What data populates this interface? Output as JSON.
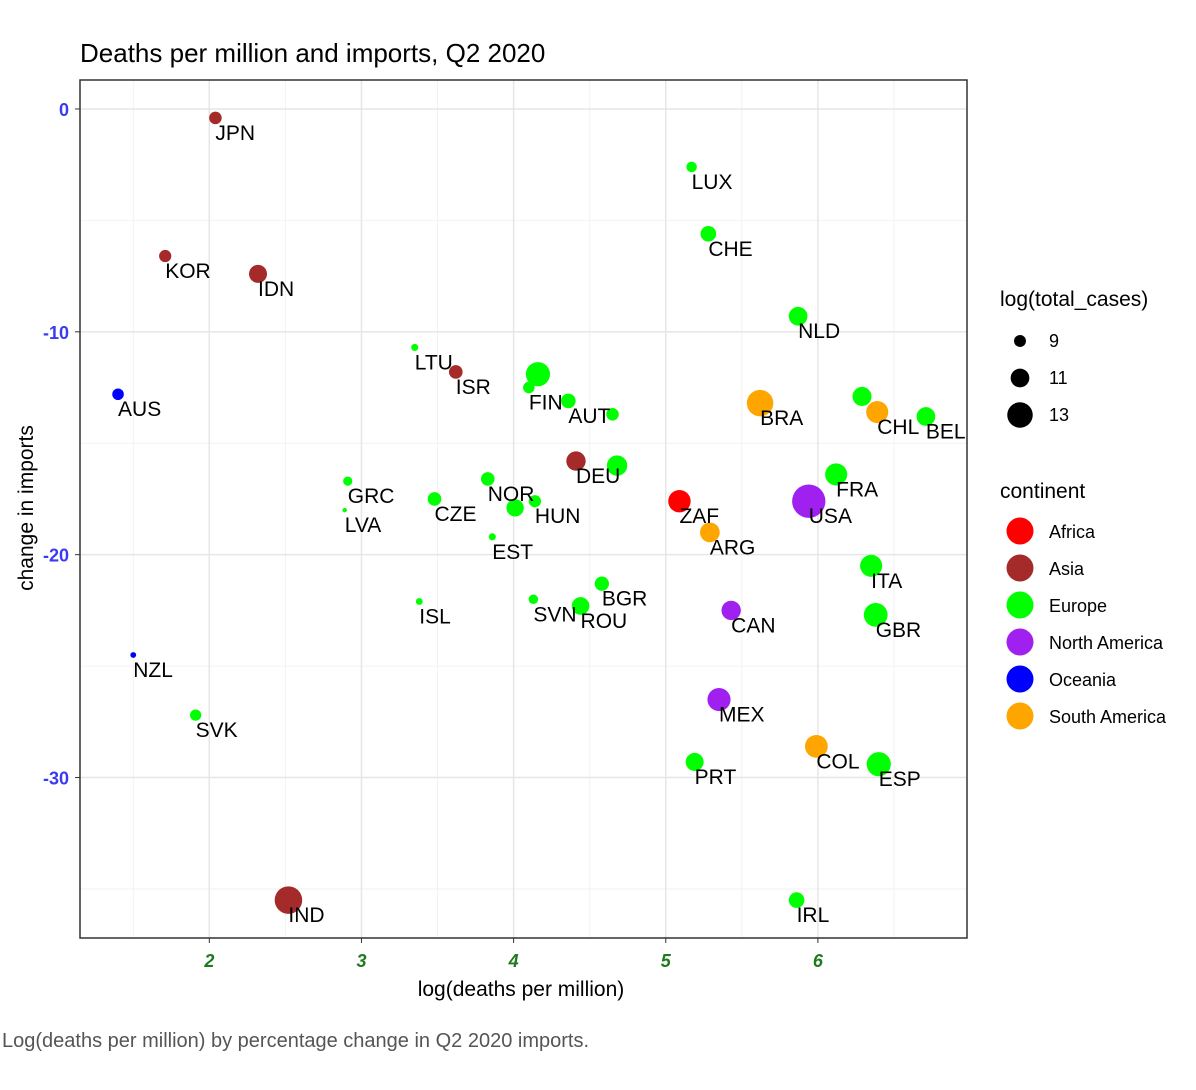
{
  "caption": "Log(deaths per million) by percentage change in Q2 2020 imports.",
  "chart_data": {
    "type": "scatter",
    "title": "Deaths per million and imports, Q2 2020",
    "xlabel": "log(deaths per million)",
    "ylabel": "change in imports",
    "xlim": [
      1.15,
      6.98
    ],
    "ylim": [
      -37.2,
      1.3
    ],
    "x_ticks": [
      2,
      3,
      4,
      5,
      6
    ],
    "y_ticks": [
      0,
      -10,
      -20,
      -30
    ],
    "x_tick_labels": [
      "2",
      "3",
      "4",
      "5",
      "6"
    ],
    "y_tick_labels": [
      "0",
      "-10",
      "-20",
      "-30"
    ],
    "grid": true,
    "legend_position": "right",
    "size_legend": {
      "title": "log(total_cases)",
      "entries": [
        {
          "label": "9",
          "value": 9
        },
        {
          "label": "11",
          "value": 11
        },
        {
          "label": "13",
          "value": 13
        }
      ]
    },
    "color_legend": {
      "title": "continent",
      "entries": [
        {
          "label": "Africa",
          "color": "#ff0000"
        },
        {
          "label": "Asia",
          "color": "#a52a2a"
        },
        {
          "label": "Europe",
          "color": "#00ff00"
        },
        {
          "label": "North America",
          "color": "#a020f0"
        },
        {
          "label": "Oceania",
          "color": "#0000ff"
        },
        {
          "label": "South America",
          "color": "#ffa500"
        }
      ]
    },
    "points": [
      {
        "label": "JPN",
        "x": 2.04,
        "y": -0.4,
        "continent": "Asia",
        "size": 9.2
      },
      {
        "label": "KOR",
        "x": 1.71,
        "y": -6.6,
        "continent": "Asia",
        "size": 9.1
      },
      {
        "label": "IDN",
        "x": 2.32,
        "y": -7.4,
        "continent": "Asia",
        "size": 10.8
      },
      {
        "label": "ISR",
        "x": 3.62,
        "y": -11.8,
        "continent": "Asia",
        "size": 9.5
      },
      {
        "label": "DEU",
        "x": 4.41,
        "y": -15.8,
        "continent": "Asia",
        "size": 11.2
      },
      {
        "label": "IND",
        "x": 2.52,
        "y": -35.5,
        "continent": "Asia",
        "size": 13.6
      },
      {
        "label": "AUS",
        "x": 1.4,
        "y": -12.8,
        "continent": "Oceania",
        "size": 8.9
      },
      {
        "label": "NZL",
        "x": 1.5,
        "y": -24.5,
        "continent": "Oceania",
        "size": 7.2
      },
      {
        "label": "LUX",
        "x": 5.17,
        "y": -2.6,
        "continent": "Europe",
        "size": 8.6
      },
      {
        "label": "CHE",
        "x": 5.28,
        "y": -5.6,
        "continent": "Europe",
        "size": 10.1
      },
      {
        "label": "NLD",
        "x": 5.87,
        "y": -9.3,
        "continent": "Europe",
        "size": 11.0
      },
      {
        "label": "LTU",
        "x": 3.35,
        "y": -10.7,
        "continent": "Europe",
        "size": 7.6
      },
      {
        "label": "FIN",
        "x": 4.1,
        "y": -12.5,
        "continent": "Europe",
        "size": 8.9
      },
      {
        "label": "",
        "x": 4.16,
        "y": -11.9,
        "continent": "Europe",
        "size": 12.6
      },
      {
        "label": "AUT",
        "x": 4.36,
        "y": -13.1,
        "continent": "Europe",
        "size": 9.8
      },
      {
        "label": "",
        "x": 4.65,
        "y": -13.7,
        "continent": "Europe",
        "size": 9.2
      },
      {
        "label": "",
        "x": 4.68,
        "y": -16.0,
        "continent": "Europe",
        "size": 11.5
      },
      {
        "label": "",
        "x": 6.29,
        "y": -12.9,
        "continent": "Europe",
        "size": 11.1
      },
      {
        "label": "BEL",
        "x": 6.71,
        "y": -13.8,
        "continent": "Europe",
        "size": 11.0
      },
      {
        "label": "GRC",
        "x": 2.91,
        "y": -16.7,
        "continent": "Europe",
        "size": 8.2
      },
      {
        "label": "LVA",
        "x": 2.89,
        "y": -18.0,
        "continent": "Europe",
        "size": 6.8
      },
      {
        "label": "CZE",
        "x": 3.48,
        "y": -17.5,
        "continent": "Europe",
        "size": 9.5
      },
      {
        "label": "NOR",
        "x": 3.83,
        "y": -16.6,
        "continent": "Europe",
        "size": 9.5
      },
      {
        "label": "HUN",
        "x": 4.14,
        "y": -17.6,
        "continent": "Europe",
        "size": 9.1
      },
      {
        "label": "",
        "x": 4.01,
        "y": -17.9,
        "continent": "Europe",
        "size": 10.6
      },
      {
        "label": "EST",
        "x": 3.86,
        "y": -19.2,
        "continent": "Europe",
        "size": 7.6
      },
      {
        "label": "FRA",
        "x": 6.12,
        "y": -16.4,
        "continent": "Europe",
        "size": 12.0
      },
      {
        "label": "ITA",
        "x": 6.35,
        "y": -20.5,
        "continent": "Europe",
        "size": 12.0
      },
      {
        "label": "GBR",
        "x": 6.38,
        "y": -22.7,
        "continent": "Europe",
        "size": 12.5
      },
      {
        "label": "BGR",
        "x": 4.58,
        "y": -21.3,
        "continent": "Europe",
        "size": 9.7
      },
      {
        "label": "SVN",
        "x": 4.13,
        "y": -22.0,
        "continent": "Europe",
        "size": 8.3
      },
      {
        "label": "ROU",
        "x": 4.44,
        "y": -22.3,
        "continent": "Europe",
        "size": 10.7
      },
      {
        "label": "ISL",
        "x": 3.38,
        "y": -22.1,
        "continent": "Europe",
        "size": 7.5
      },
      {
        "label": "SVK",
        "x": 1.91,
        "y": -27.2,
        "continent": "Europe",
        "size": 8.8
      },
      {
        "label": "PRT",
        "x": 5.19,
        "y": -29.3,
        "continent": "Europe",
        "size": 10.8
      },
      {
        "label": "ESP",
        "x": 6.4,
        "y": -29.4,
        "continent": "Europe",
        "size": 12.6
      },
      {
        "label": "IRL",
        "x": 5.86,
        "y": -35.5,
        "continent": "Europe",
        "size": 10.1
      },
      {
        "label": "BRA",
        "x": 5.62,
        "y": -13.2,
        "continent": "South America",
        "size": 13.3
      },
      {
        "label": "CHL",
        "x": 6.39,
        "y": -13.6,
        "continent": "South America",
        "size": 12.0
      },
      {
        "label": "ARG",
        "x": 5.29,
        "y": -19.0,
        "continent": "South America",
        "size": 11.3
      },
      {
        "label": "COL",
        "x": 5.99,
        "y": -28.6,
        "continent": "South America",
        "size": 12.2
      },
      {
        "label": "ZAF",
        "x": 5.09,
        "y": -17.6,
        "continent": "Africa",
        "size": 12.1
      },
      {
        "label": "USA",
        "x": 5.94,
        "y": -17.6,
        "continent": "North America",
        "size": 15.3
      },
      {
        "label": "CAN",
        "x": 5.43,
        "y": -22.5,
        "continent": "North America",
        "size": 11.2
      },
      {
        "label": "MEX",
        "x": 5.35,
        "y": -26.5,
        "continent": "North America",
        "size": 12.3
      }
    ]
  }
}
